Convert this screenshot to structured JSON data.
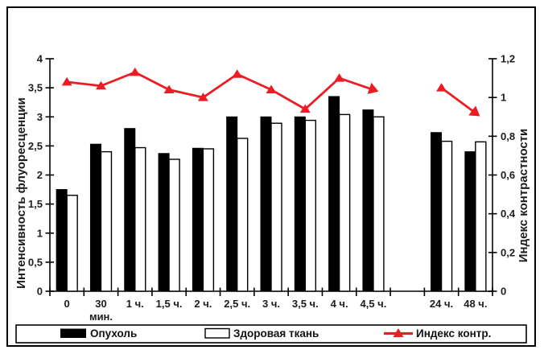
{
  "chart_data": {
    "type": "bar",
    "title": "",
    "categories": [
      "0",
      "30",
      "1 ч.",
      "1,5 ч.",
      "2 ч.",
      "2,5 ч.",
      "3 ч.",
      "3,5 ч.",
      "4 ч.",
      "4,5 ч.",
      "24 ч.",
      "48 ч."
    ],
    "x_sublabel": "мин.",
    "x_sublabel_under": "30",
    "gap_slot_after_category": "4,5 ч.",
    "series": [
      {
        "name": "Опухоль",
        "type": "bar",
        "axis": "left",
        "color": "#000000",
        "values": [
          1.75,
          2.53,
          2.8,
          2.37,
          2.46,
          3.0,
          3.0,
          3.0,
          3.35,
          3.12,
          2.73,
          2.4
        ]
      },
      {
        "name": "Здоровая ткань",
        "type": "bar",
        "axis": "left",
        "color": "#ffffff",
        "values": [
          1.65,
          2.4,
          2.47,
          2.27,
          2.45,
          2.63,
          2.89,
          2.94,
          3.04,
          3.0,
          2.58,
          2.57
        ]
      },
      {
        "name": "Индекс контр.",
        "type": "line",
        "axis": "right",
        "color": "#ED1C24",
        "marker": "triangle",
        "segments": [
          [
            0,
            9
          ],
          [
            10,
            11
          ]
        ],
        "values": [
          1.08,
          1.06,
          1.13,
          1.04,
          1.0,
          1.12,
          1.04,
          0.94,
          1.1,
          1.04,
          1.05,
          0.92
        ]
      }
    ],
    "left_axis": {
      "label": "Интенсивность флуоресценции",
      "ticks": [
        "0",
        "0,5",
        "1",
        "1,5",
        "2",
        "2,5",
        "3",
        "3,5",
        "4"
      ],
      "range": [
        0,
        4
      ]
    },
    "right_axis": {
      "label": "Индекс контрастности",
      "ticks": [
        "0",
        "0,2",
        "0,4",
        "0,6",
        "0,8",
        "1",
        "1,2"
      ],
      "range": [
        0,
        1.2
      ]
    },
    "legend": {
      "position": "bottom",
      "items": [
        "Опухоль",
        "Здоровая ткань",
        "Индекс контр."
      ]
    },
    "grid": false
  }
}
